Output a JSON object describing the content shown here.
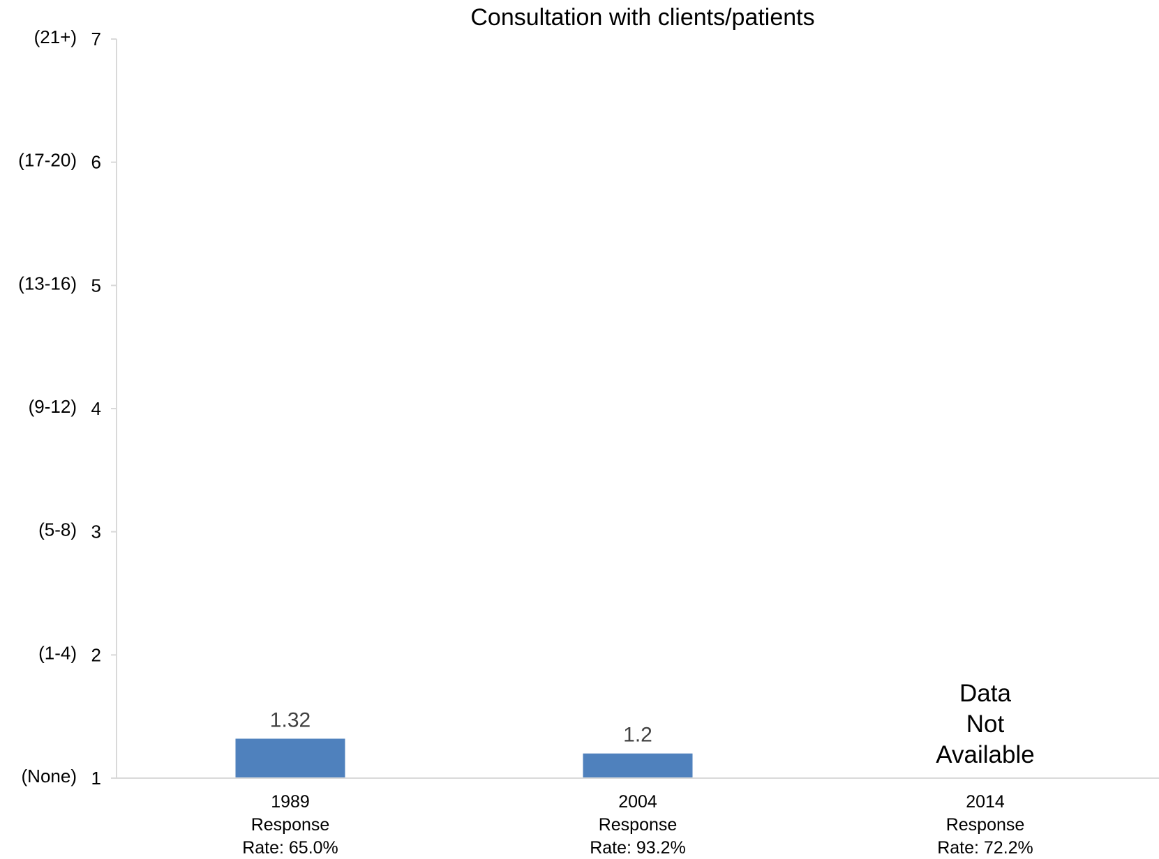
{
  "chart_data": {
    "type": "bar",
    "title": "Consultation with clients/patients",
    "xlabel": "",
    "ylabel": "",
    "ylim": [
      1,
      7
    ],
    "yticks": [
      1,
      2,
      3,
      4,
      5,
      6,
      7
    ],
    "ytick_category_labels": [
      "(None)",
      "(1-4)",
      "(5-8)",
      "(9-12)",
      "(13-16)",
      "(17-20)",
      "(21+)"
    ],
    "categories": [
      [
        "1989",
        "Response",
        "Rate: 65.0%"
      ],
      [
        "2004",
        "Response",
        "Rate: 93.2%"
      ],
      [
        "2014",
        "Response",
        "Rate: 72.2%"
      ]
    ],
    "values": [
      1.32,
      1.2,
      null
    ],
    "data_labels": [
      "1.32",
      "1.2",
      ""
    ],
    "missing_note": [
      "Data",
      "Not",
      "Available"
    ],
    "grid": false,
    "colors": {
      "bar": "#4f81bd",
      "axis": "#d9d9d9",
      "data_label": "#404040"
    }
  }
}
